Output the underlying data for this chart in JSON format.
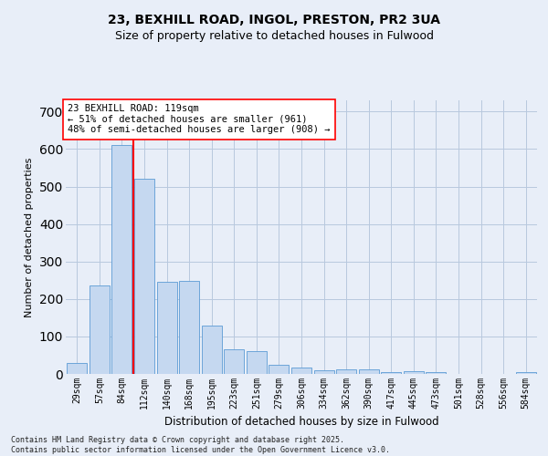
{
  "title": "23, BEXHILL ROAD, INGOL, PRESTON, PR2 3UA",
  "subtitle": "Size of property relative to detached houses in Fulwood",
  "xlabel": "Distribution of detached houses by size in Fulwood",
  "ylabel": "Number of detached properties",
  "categories": [
    "29sqm",
    "57sqm",
    "84sqm",
    "112sqm",
    "140sqm",
    "168sqm",
    "195sqm",
    "223sqm",
    "251sqm",
    "279sqm",
    "306sqm",
    "334sqm",
    "362sqm",
    "390sqm",
    "417sqm",
    "445sqm",
    "473sqm",
    "501sqm",
    "528sqm",
    "556sqm",
    "584sqm"
  ],
  "values": [
    30,
    235,
    610,
    520,
    245,
    248,
    130,
    65,
    60,
    25,
    18,
    10,
    13,
    13,
    6,
    8,
    6,
    0,
    0,
    0,
    5
  ],
  "bar_color": "#c5d8f0",
  "bar_edge_color": "#5b9bd5",
  "vline_index": 2.5,
  "vline_color": "red",
  "annotation_text": "23 BEXHILL ROAD: 119sqm\n← 51% of detached houses are smaller (961)\n48% of semi-detached houses are larger (908) →",
  "annotation_box_color": "white",
  "annotation_box_edge": "red",
  "bg_color": "#e8eef8",
  "grid_color": "#b8c8de",
  "footer": "Contains HM Land Registry data © Crown copyright and database right 2025.\nContains public sector information licensed under the Open Government Licence v3.0.",
  "title_fontsize": 10,
  "subtitle_fontsize": 9,
  "ylabel_fontsize": 8,
  "xlabel_fontsize": 8.5,
  "tick_fontsize": 7,
  "annot_fontsize": 7.5,
  "footer_fontsize": 6,
  "ylim": [
    0,
    730
  ]
}
